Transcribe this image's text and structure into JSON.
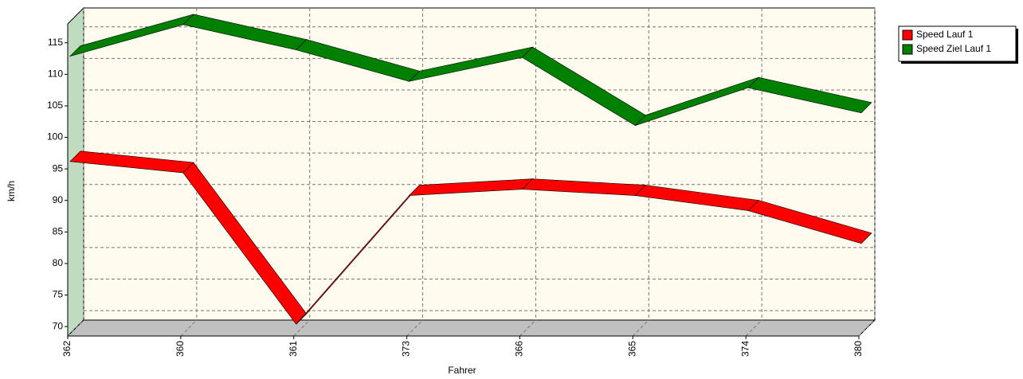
{
  "chart_data": {
    "type": "line3d",
    "x_label": "Fahrer",
    "y_label": "km/h",
    "categories": [
      "362",
      "360",
      "361",
      "373",
      "366",
      "365",
      "374",
      "380"
    ],
    "series": [
      {
        "name": "Speed Lauf 1",
        "color": "#ff0000",
        "values": [
          95.8,
          94,
          70,
          90.4,
          91.4,
          90.4,
          88,
          82.8
        ]
      },
      {
        "name": "Speed Ziel Lauf 1",
        "color": "#008000",
        "values": [
          112.5,
          117.5,
          113.5,
          108.5,
          112.3,
          101.5,
          107.5,
          103.5
        ]
      }
    ],
    "ylim": [
      68.5,
      118
    ],
    "yticks": [
      70,
      75,
      80,
      85,
      90,
      95,
      100,
      105,
      110,
      115
    ],
    "grid": true,
    "legend": "top-right"
  }
}
